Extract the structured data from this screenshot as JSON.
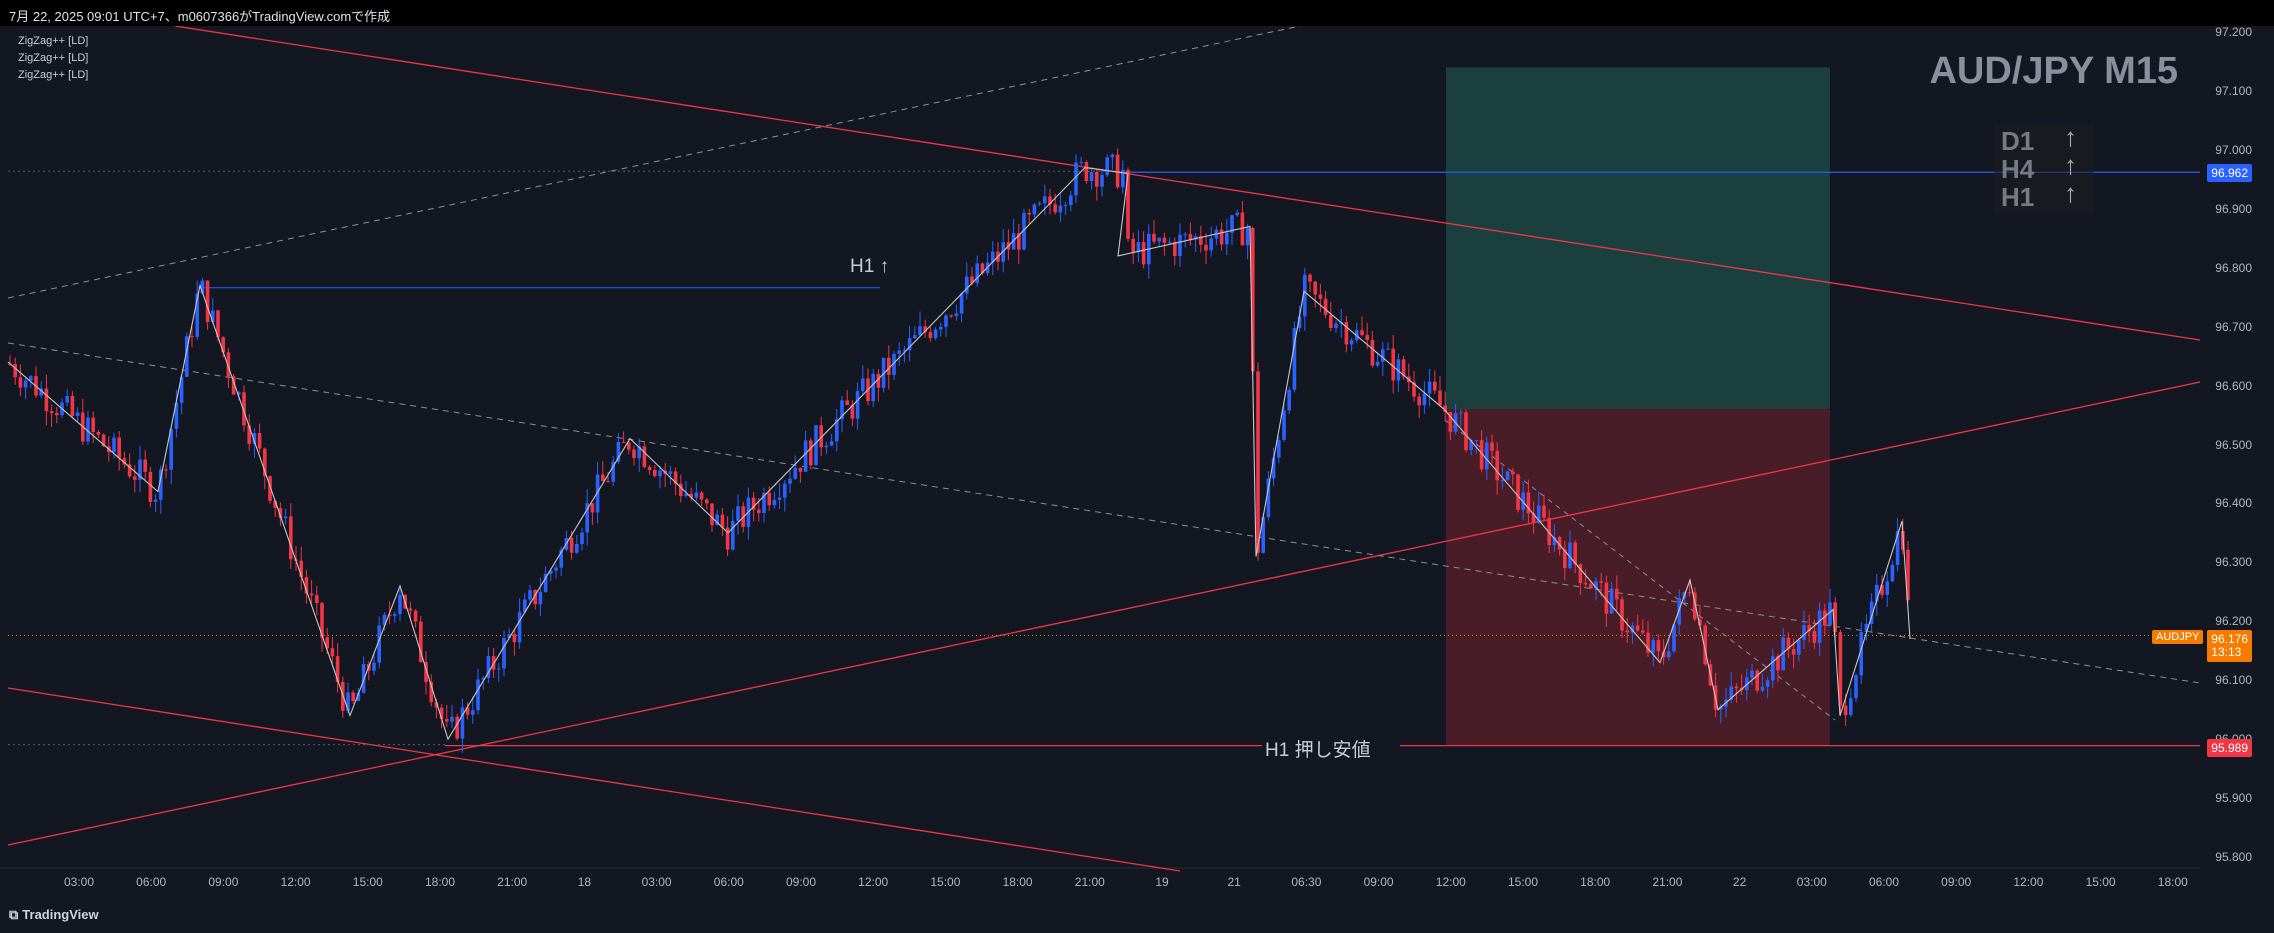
{
  "header": {
    "title": "7月 22, 2025 09:01 UTC+7、m0607366がTradingView.comで作成"
  },
  "footer": {
    "brand": "TradingView"
  },
  "indicators": [
    "ZigZag++ [LD]",
    "ZigZag++ [LD]",
    "ZigZag++ [LD]"
  ],
  "watermark": "AUD/JPY M15",
  "trend_table": [
    {
      "tf": "D1",
      "dir": "↑"
    },
    {
      "tf": "H4",
      "dir": "↑"
    },
    {
      "tf": "H1",
      "dir": "↑"
    }
  ],
  "annotations": {
    "h1_high": "H1 ↑",
    "h1_support": "H1 押し安値"
  },
  "symbol": "AUDJPY",
  "price_tags": {
    "current_price": "96.176",
    "countdown": "13:13",
    "blue_level": "96.962",
    "red_level": "95.989"
  },
  "colors": {
    "background": "#131722",
    "bull_candle": "#2962ff",
    "bear_candle": "#f23645",
    "trendline": "#f23645",
    "zigzag": "#c8c8c8",
    "target_zone": "#1f4e47",
    "stop_zone": "#5c2029",
    "current_price_tag": "#f57c00",
    "blue_level_tag": "#2962ff",
    "red_level_tag": "#f23645"
  },
  "chart_data": {
    "type": "candlestick",
    "title": "AUD/JPY M15",
    "y_ticks": [
      "97.200",
      "97.100",
      "97.000",
      "96.900",
      "96.800",
      "96.700",
      "96.600",
      "96.500",
      "96.400",
      "96.300",
      "96.200",
      "96.100",
      "96.000",
      "95.900",
      "95.800"
    ],
    "x_ticks": [
      "03:00",
      "06:00",
      "09:00",
      "12:00",
      "15:00",
      "18:00",
      "21:00",
      "18",
      "03:00",
      "06:00",
      "09:00",
      "12:00",
      "15:00",
      "18:00",
      "21:00",
      "19",
      "21",
      "06:30",
      "09:00",
      "12:00",
      "15:00",
      "18:00",
      "21:00",
      "22",
      "03:00",
      "06:00",
      "09:00",
      "12:00",
      "15:00",
      "18:00"
    ],
    "ylim": [
      95.77,
      97.22
    ],
    "horizontal_levels": [
      96.962,
      96.766,
      95.989
    ],
    "current_price": 96.176,
    "position": {
      "type": "long",
      "target_top": 97.14,
      "entry": 96.56,
      "stop_bottom": 95.99
    },
    "zigzag_price_path": [
      96.64,
      96.42,
      96.77,
      96.04,
      96.26,
      96.0,
      96.51,
      96.35,
      96.97,
      96.96,
      96.82,
      96.87,
      96.31,
      96.76,
      96.56,
      96.13,
      96.27,
      96.05,
      96.22,
      96.04,
      96.37,
      96.17
    ]
  }
}
